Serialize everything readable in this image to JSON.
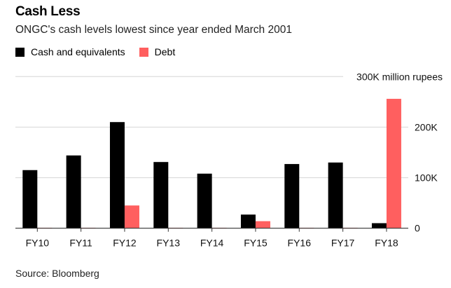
{
  "chart_data": {
    "type": "bar",
    "title": "Cash Less",
    "subtitle": "ONGC's cash levels lowest since year ended March 2001",
    "categories": [
      "FY10",
      "FY11",
      "FY12",
      "FY13",
      "FY14",
      "FY15",
      "FY16",
      "FY17",
      "FY18"
    ],
    "series": [
      {
        "name": "Cash and equivalents",
        "color": "#000000",
        "values": [
          115000,
          144000,
          210000,
          131000,
          108000,
          27000,
          127000,
          130000,
          10000
        ]
      },
      {
        "name": "Debt",
        "color": "#ff5f5f",
        "values": [
          1000,
          1000,
          45000,
          1000,
          1000,
          14000,
          1000,
          1000,
          256000
        ]
      }
    ],
    "ylim": [
      0,
      300000
    ],
    "yticks": [
      0,
      100000,
      200000,
      300000
    ],
    "ytick_labels": [
      "0",
      "100K",
      "200K",
      "300K million rupees"
    ],
    "grid": true,
    "legend_position": "top-left",
    "source": "Source: Bloomberg"
  }
}
